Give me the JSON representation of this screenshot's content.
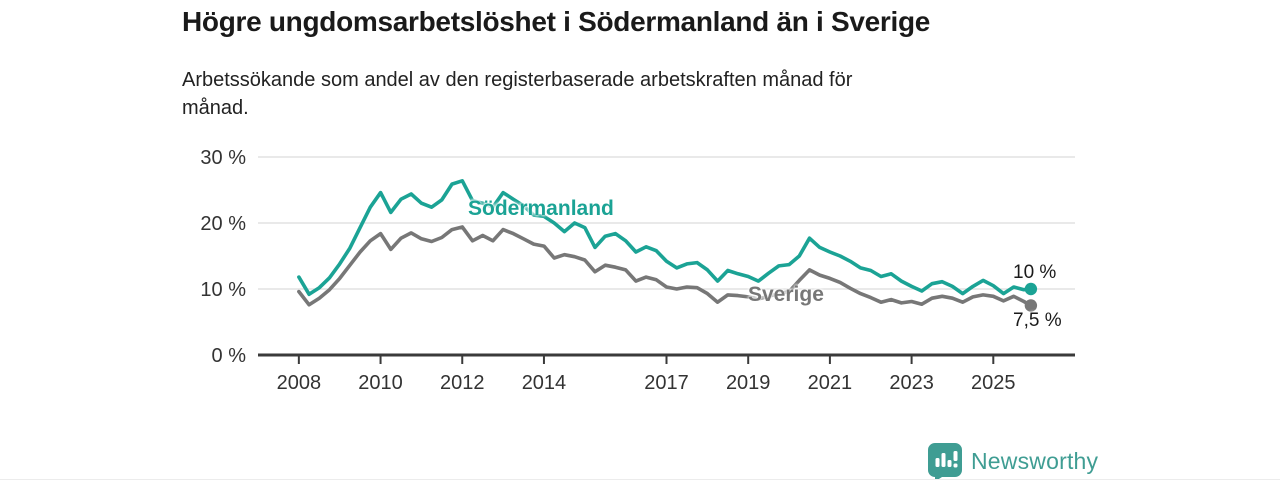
{
  "header": {
    "title": "Högre ungdomsarbetslöshet i Södermanland än i Sverige",
    "subtitle": "Arbetssökande som andel av den registerbaserade arbetskraften månad för månad.",
    "subtitle_lines": [
      "Arbetssökande som andel av den registerbaserade arbetskraften månad för",
      "månad."
    ]
  },
  "chart_data": {
    "type": "line",
    "title": "Högre ungdomsarbetslöshet i Södermanland än i Sverige",
    "xlabel": "",
    "ylabel": "",
    "unit": "%",
    "grid": "horizontal",
    "legend_position": "inline-labels",
    "xlim": [
      2007,
      2027
    ],
    "ylim": [
      0,
      30
    ],
    "x_ticks": [
      2008,
      2010,
      2012,
      2014,
      2017,
      2019,
      2021,
      2023,
      2025
    ],
    "y_ticks": [
      0,
      10,
      20,
      30
    ],
    "y_tick_suffix": " %",
    "x": [
      2008,
      2008.25,
      2008.5,
      2008.75,
      2009,
      2009.25,
      2009.5,
      2009.75,
      2010,
      2010.25,
      2010.5,
      2010.75,
      2011,
      2011.25,
      2011.5,
      2011.75,
      2012,
      2012.25,
      2012.5,
      2012.75,
      2013,
      2013.25,
      2013.5,
      2013.75,
      2014,
      2014.25,
      2014.5,
      2014.75,
      2015,
      2015.25,
      2015.5,
      2015.75,
      2016,
      2016.25,
      2016.5,
      2016.75,
      2017,
      2017.25,
      2017.5,
      2017.75,
      2018,
      2018.25,
      2018.5,
      2018.75,
      2019,
      2019.25,
      2019.5,
      2019.75,
      2020,
      2020.25,
      2020.5,
      2020.75,
      2021,
      2021.25,
      2021.5,
      2021.75,
      2022,
      2022.25,
      2022.5,
      2022.75,
      2023,
      2023.25,
      2023.5,
      2023.75,
      2024,
      2024.25,
      2024.5,
      2024.75,
      2025,
      2025.25,
      2025.5,
      2025.75,
      2025.92
    ],
    "series": [
      {
        "name": "Södermanland",
        "color": "#1ba395",
        "end_label": "10 %",
        "values": [
          11.8,
          9.2,
          10.2,
          11.7,
          13.8,
          16.2,
          19.3,
          22.4,
          24.6,
          21.6,
          23.6,
          24.4,
          23.0,
          22.4,
          23.5,
          25.9,
          26.4,
          23.4,
          23.0,
          22.4,
          24.6,
          23.6,
          22.6,
          21.2,
          21.0,
          20.0,
          18.7,
          20.0,
          19.3,
          16.3,
          18.0,
          18.4,
          17.3,
          15.6,
          16.4,
          15.8,
          14.2,
          13.2,
          13.8,
          14.0,
          12.9,
          11.2,
          12.8,
          12.3,
          11.9,
          11.2,
          12.4,
          13.5,
          13.7,
          15.0,
          17.7,
          16.3,
          15.6,
          15.0,
          14.2,
          13.2,
          12.8,
          11.9,
          12.3,
          11.2,
          10.4,
          9.7,
          10.8,
          11.1,
          10.4,
          9.3,
          10.4,
          11.3,
          10.5,
          9.3,
          10.3,
          9.9,
          10.0
        ]
      },
      {
        "name": "Sverige",
        "color": "#777777",
        "end_label": "7,5 %",
        "values": [
          9.6,
          7.6,
          8.6,
          9.9,
          11.6,
          13.6,
          15.6,
          17.3,
          18.4,
          16.0,
          17.7,
          18.5,
          17.6,
          17.2,
          17.8,
          19.0,
          19.4,
          17.3,
          18.1,
          17.3,
          19.0,
          18.4,
          17.6,
          16.8,
          16.5,
          14.7,
          15.2,
          14.9,
          14.4,
          12.6,
          13.6,
          13.3,
          12.9,
          11.2,
          11.8,
          11.4,
          10.3,
          10.0,
          10.3,
          10.2,
          9.3,
          8.0,
          9.1,
          9.0,
          8.8,
          8.5,
          8.9,
          9.3,
          9.6,
          11.3,
          12.9,
          12.1,
          11.6,
          11.0,
          10.1,
          9.3,
          8.7,
          8.0,
          8.4,
          7.9,
          8.1,
          7.7,
          8.6,
          8.9,
          8.6,
          8.0,
          8.8,
          9.1,
          8.9,
          8.2,
          8.9,
          8.1,
          7.5
        ]
      }
    ]
  },
  "colors": {
    "accent_teal": "#1ba395",
    "series_gray": "#777777",
    "gridline": "#dcdcdc",
    "axis": "#3a3a3a",
    "text_dark": "#1a1a1a",
    "brand_teal": "#3f9d93"
  },
  "footer": {
    "brand": "Newsworthy"
  }
}
